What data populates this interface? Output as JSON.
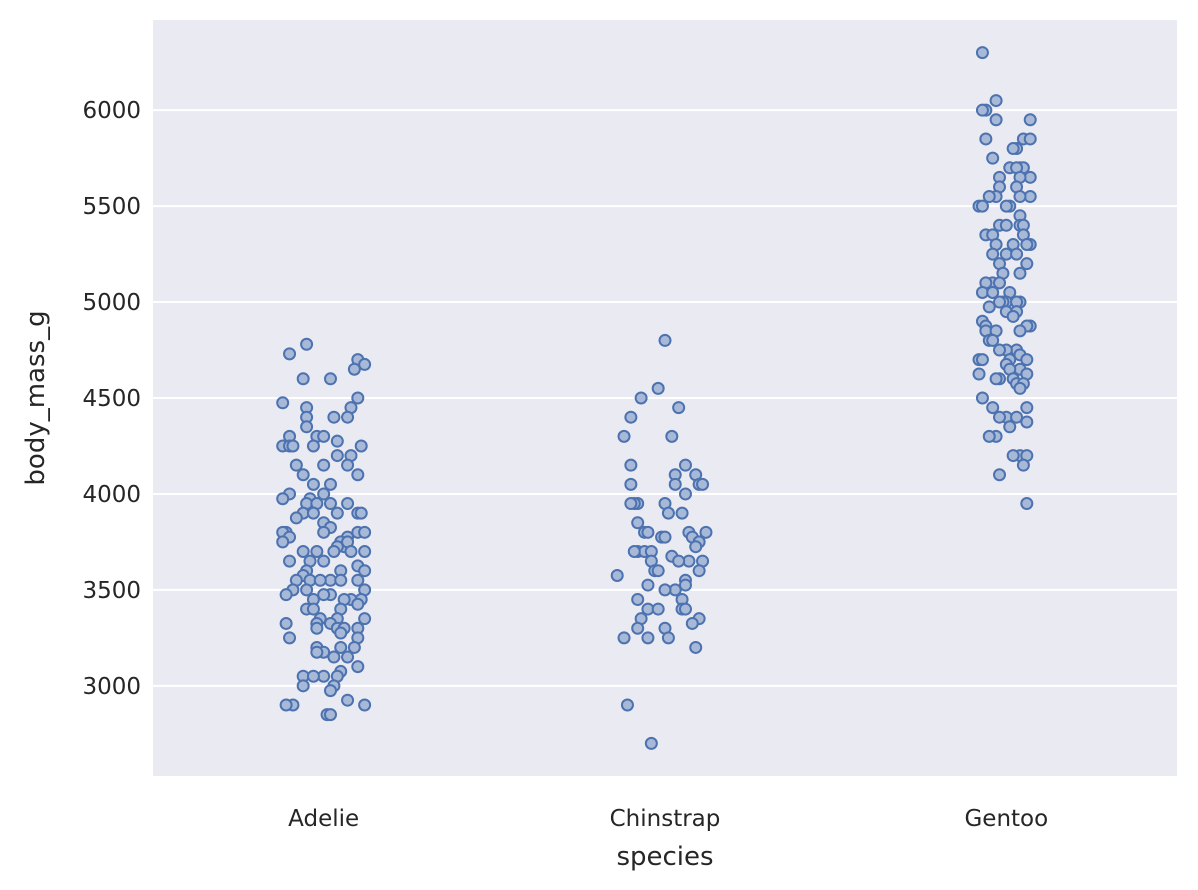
{
  "chart_data": {
    "type": "scatter",
    "subtype": "strip",
    "title": "",
    "xlabel": "species",
    "ylabel": "body_mass_g",
    "categories": [
      "Adelie",
      "Chinstrap",
      "Gentoo"
    ],
    "ylim": [
      2530,
      6470
    ],
    "yticks": [
      3000,
      3500,
      4000,
      4500,
      5000,
      5500,
      6000
    ],
    "grid": true,
    "legend": "none",
    "colors": {
      "background": "#eaeaf2",
      "grid": "#ffffff",
      "marker_face": "#a8b9d8",
      "marker_edge": "#4c72b0"
    },
    "series": [
      {
        "category": "Adelie",
        "points": [
          [
            -0.05,
            4780
          ],
          [
            -0.1,
            4730
          ],
          [
            0.1,
            4700
          ],
          [
            0.12,
            4675
          ],
          [
            0.09,
            4650
          ],
          [
            -0.06,
            4600
          ],
          [
            0.02,
            4600
          ],
          [
            0.1,
            4500
          ],
          [
            -0.12,
            4475
          ],
          [
            -0.05,
            4450
          ],
          [
            0.08,
            4450
          ],
          [
            0.03,
            4400
          ],
          [
            0.07,
            4400
          ],
          [
            -0.05,
            4400
          ],
          [
            -0.05,
            4350
          ],
          [
            -0.1,
            4300
          ],
          [
            -0.02,
            4300
          ],
          [
            0.0,
            4300
          ],
          [
            -0.12,
            4250
          ],
          [
            -0.1,
            4250
          ],
          [
            -0.03,
            4250
          ],
          [
            0.11,
            4250
          ],
          [
            0.04,
            4275
          ],
          [
            -0.09,
            4250
          ],
          [
            0.04,
            4200
          ],
          [
            0.08,
            4200
          ],
          [
            -0.08,
            4150
          ],
          [
            0.0,
            4150
          ],
          [
            0.07,
            4150
          ],
          [
            -0.06,
            4100
          ],
          [
            0.1,
            4100
          ],
          [
            0.02,
            4050
          ],
          [
            -0.03,
            4050
          ],
          [
            -0.1,
            4000
          ],
          [
            0.0,
            4000
          ],
          [
            -0.12,
            3975
          ],
          [
            -0.04,
            3975
          ],
          [
            0.02,
            3950
          ],
          [
            -0.05,
            3950
          ],
          [
            0.07,
            3950
          ],
          [
            -0.02,
            3950
          ],
          [
            0.1,
            3900
          ],
          [
            0.11,
            3900
          ],
          [
            -0.06,
            3900
          ],
          [
            -0.03,
            3900
          ],
          [
            0.04,
            3900
          ],
          [
            -0.08,
            3875
          ],
          [
            0.0,
            3850
          ],
          [
            0.02,
            3825
          ],
          [
            0.1,
            3800
          ],
          [
            -0.11,
            3800
          ],
          [
            0.12,
            3800
          ],
          [
            -0.12,
            3800
          ],
          [
            -0.1,
            3775
          ],
          [
            0.0,
            3800
          ],
          [
            0.07,
            3775
          ],
          [
            0.05,
            3750
          ],
          [
            0.06,
            3725
          ],
          [
            -0.12,
            3750
          ],
          [
            0.04,
            3725
          ],
          [
            0.07,
            3750
          ],
          [
            -0.06,
            3700
          ],
          [
            0.08,
            3700
          ],
          [
            0.12,
            3700
          ],
          [
            -0.02,
            3700
          ],
          [
            0.03,
            3700
          ],
          [
            -0.1,
            3650
          ],
          [
            -0.04,
            3650
          ],
          [
            0.0,
            3650
          ],
          [
            0.1,
            3625
          ],
          [
            -0.05,
            3600
          ],
          [
            0.05,
            3600
          ],
          [
            0.12,
            3600
          ],
          [
            -0.06,
            3575
          ],
          [
            0.02,
            3550
          ],
          [
            -0.08,
            3550
          ],
          [
            -0.04,
            3550
          ],
          [
            0.05,
            3550
          ],
          [
            0.1,
            3550
          ],
          [
            -0.01,
            3550
          ],
          [
            -0.09,
            3500
          ],
          [
            -0.05,
            3500
          ],
          [
            0.02,
            3475
          ],
          [
            0.12,
            3500
          ],
          [
            -0.11,
            3475
          ],
          [
            0.0,
            3475
          ],
          [
            0.08,
            3450
          ],
          [
            0.11,
            3450
          ],
          [
            0.06,
            3450
          ],
          [
            -0.03,
            3450
          ],
          [
            0.1,
            3425
          ],
          [
            -0.05,
            3400
          ],
          [
            -0.03,
            3400
          ],
          [
            0.05,
            3400
          ],
          [
            0.12,
            3350
          ],
          [
            -0.01,
            3350
          ],
          [
            0.04,
            3350
          ],
          [
            0.02,
            3325
          ],
          [
            -0.11,
            3325
          ],
          [
            -0.02,
            3325
          ],
          [
            0.04,
            3300
          ],
          [
            0.06,
            3300
          ],
          [
            -0.02,
            3300
          ],
          [
            0.1,
            3300
          ],
          [
            0.05,
            3275
          ],
          [
            -0.1,
            3250
          ],
          [
            0.1,
            3250
          ],
          [
            -0.02,
            3200
          ],
          [
            0.05,
            3200
          ],
          [
            0.09,
            3200
          ],
          [
            0.0,
            3175
          ],
          [
            -0.02,
            3175
          ],
          [
            0.03,
            3150
          ],
          [
            0.07,
            3150
          ],
          [
            0.1,
            3100
          ],
          [
            0.05,
            3075
          ],
          [
            -0.06,
            3050
          ],
          [
            0.0,
            3050
          ],
          [
            -0.03,
            3050
          ],
          [
            0.04,
            3050
          ],
          [
            0.03,
            3000
          ],
          [
            -0.06,
            3000
          ],
          [
            0.02,
            2975
          ],
          [
            0.07,
            2925
          ],
          [
            -0.09,
            2900
          ],
          [
            -0.11,
            2900
          ],
          [
            0.12,
            2900
          ],
          [
            0.01,
            2850
          ],
          [
            0.02,
            2850
          ]
        ]
      },
      {
        "category": "Chinstrap",
        "points": [
          [
            0.0,
            4800
          ],
          [
            -0.02,
            4550
          ],
          [
            0.04,
            4450
          ],
          [
            -0.07,
            4500
          ],
          [
            -0.1,
            4400
          ],
          [
            -0.12,
            4300
          ],
          [
            0.02,
            4300
          ],
          [
            0.06,
            4150
          ],
          [
            -0.1,
            4150
          ],
          [
            0.09,
            4100
          ],
          [
            0.03,
            4100
          ],
          [
            0.1,
            4050
          ],
          [
            0.11,
            4050
          ],
          [
            0.03,
            4050
          ],
          [
            -0.1,
            4050
          ],
          [
            0.06,
            4000
          ],
          [
            -0.08,
            3950
          ],
          [
            -0.09,
            3950
          ],
          [
            0.0,
            3950
          ],
          [
            -0.1,
            3950
          ],
          [
            0.05,
            3900
          ],
          [
            0.01,
            3900
          ],
          [
            -0.08,
            3850
          ],
          [
            0.07,
            3800
          ],
          [
            0.12,
            3800
          ],
          [
            -0.06,
            3800
          ],
          [
            -0.05,
            3800
          ],
          [
            0.08,
            3775
          ],
          [
            -0.01,
            3775
          ],
          [
            0.1,
            3750
          ],
          [
            0.0,
            3775
          ],
          [
            -0.08,
            3700
          ],
          [
            -0.06,
            3700
          ],
          [
            -0.04,
            3700
          ],
          [
            0.09,
            3725
          ],
          [
            -0.09,
            3700
          ],
          [
            0.02,
            3675
          ],
          [
            0.07,
            3650
          ],
          [
            0.11,
            3650
          ],
          [
            -0.04,
            3650
          ],
          [
            0.04,
            3650
          ],
          [
            -0.03,
            3600
          ],
          [
            0.1,
            3600
          ],
          [
            -0.02,
            3600
          ],
          [
            -0.14,
            3575
          ],
          [
            0.06,
            3550
          ],
          [
            0.06,
            3525
          ],
          [
            -0.05,
            3525
          ],
          [
            0.03,
            3500
          ],
          [
            0.0,
            3500
          ],
          [
            -0.08,
            3450
          ],
          [
            0.05,
            3450
          ],
          [
            0.05,
            3400
          ],
          [
            0.06,
            3400
          ],
          [
            -0.05,
            3400
          ],
          [
            -0.02,
            3400
          ],
          [
            0.1,
            3350
          ],
          [
            0.08,
            3325
          ],
          [
            -0.07,
            3350
          ],
          [
            0.0,
            3300
          ],
          [
            -0.08,
            3300
          ],
          [
            -0.05,
            3250
          ],
          [
            -0.12,
            3250
          ],
          [
            0.01,
            3250
          ],
          [
            0.09,
            3200
          ],
          [
            -0.11,
            2900
          ],
          [
            -0.04,
            2700
          ]
        ]
      },
      {
        "category": "Gentoo",
        "points": [
          [
            -0.07,
            6300
          ],
          [
            -0.03,
            6050
          ],
          [
            -0.06,
            6000
          ],
          [
            -0.07,
            6000
          ],
          [
            0.07,
            5950
          ],
          [
            -0.03,
            5950
          ],
          [
            0.05,
            5850
          ],
          [
            0.07,
            5850
          ],
          [
            -0.06,
            5850
          ],
          [
            0.03,
            5800
          ],
          [
            0.02,
            5800
          ],
          [
            -0.04,
            5750
          ],
          [
            0.01,
            5700
          ],
          [
            0.04,
            5700
          ],
          [
            0.05,
            5700
          ],
          [
            0.03,
            5700
          ],
          [
            -0.02,
            5650
          ],
          [
            0.07,
            5650
          ],
          [
            0.04,
            5650
          ],
          [
            -0.02,
            5600
          ],
          [
            0.03,
            5600
          ],
          [
            0.07,
            5550
          ],
          [
            0.04,
            5550
          ],
          [
            -0.03,
            5550
          ],
          [
            -0.05,
            5550
          ],
          [
            -0.08,
            5500
          ],
          [
            0.01,
            5500
          ],
          [
            -0.07,
            5500
          ],
          [
            0.0,
            5500
          ],
          [
            0.04,
            5450
          ],
          [
            0.04,
            5400
          ],
          [
            0.05,
            5400
          ],
          [
            -0.02,
            5400
          ],
          [
            0.0,
            5400
          ],
          [
            0.05,
            5350
          ],
          [
            -0.06,
            5350
          ],
          [
            -0.04,
            5350
          ],
          [
            0.07,
            5300
          ],
          [
            0.06,
            5300
          ],
          [
            -0.03,
            5300
          ],
          [
            0.02,
            5300
          ],
          [
            -0.04,
            5250
          ],
          [
            0.0,
            5250
          ],
          [
            0.03,
            5250
          ],
          [
            -0.02,
            5200
          ],
          [
            0.06,
            5200
          ],
          [
            0.04,
            5150
          ],
          [
            -0.01,
            5150
          ],
          [
            -0.04,
            5100
          ],
          [
            -0.06,
            5100
          ],
          [
            -0.02,
            5100
          ],
          [
            -0.07,
            5050
          ],
          [
            -0.04,
            5050
          ],
          [
            0.01,
            5050
          ],
          [
            0.0,
            5000
          ],
          [
            -0.01,
            5000
          ],
          [
            0.04,
            5000
          ],
          [
            -0.02,
            5000
          ],
          [
            0.03,
            5000
          ],
          [
            -0.05,
            4975
          ],
          [
            0.0,
            4950
          ],
          [
            0.03,
            4950
          ],
          [
            0.02,
            4925
          ],
          [
            -0.07,
            4900
          ],
          [
            -0.06,
            4875
          ],
          [
            0.07,
            4875
          ],
          [
            0.06,
            4875
          ],
          [
            -0.06,
            4850
          ],
          [
            -0.03,
            4850
          ],
          [
            0.04,
            4850
          ],
          [
            -0.05,
            4800
          ],
          [
            -0.04,
            4800
          ],
          [
            -0.08,
            4700
          ],
          [
            0.03,
            4750
          ],
          [
            0.04,
            4725
          ],
          [
            0.0,
            4750
          ],
          [
            -0.02,
            4750
          ],
          [
            -0.07,
            4700
          ],
          [
            0.06,
            4700
          ],
          [
            0.01,
            4700
          ],
          [
            0.0,
            4675
          ],
          [
            0.04,
            4650
          ],
          [
            0.06,
            4625
          ],
          [
            -0.08,
            4625
          ],
          [
            0.01,
            4650
          ],
          [
            0.02,
            4600
          ],
          [
            -0.02,
            4600
          ],
          [
            -0.03,
            4600
          ],
          [
            0.03,
            4575
          ],
          [
            0.05,
            4575
          ],
          [
            0.04,
            4550
          ],
          [
            -0.07,
            4500
          ],
          [
            -0.04,
            4450
          ],
          [
            0.06,
            4450
          ],
          [
            0.0,
            4400
          ],
          [
            0.03,
            4400
          ],
          [
            -0.02,
            4400
          ],
          [
            0.06,
            4375
          ],
          [
            0.01,
            4350
          ],
          [
            -0.03,
            4300
          ],
          [
            -0.05,
            4300
          ],
          [
            0.04,
            4200
          ],
          [
            0.02,
            4200
          ],
          [
            0.06,
            4200
          ],
          [
            0.05,
            4150
          ],
          [
            -0.02,
            4100
          ],
          [
            0.06,
            3950
          ]
        ]
      }
    ]
  }
}
